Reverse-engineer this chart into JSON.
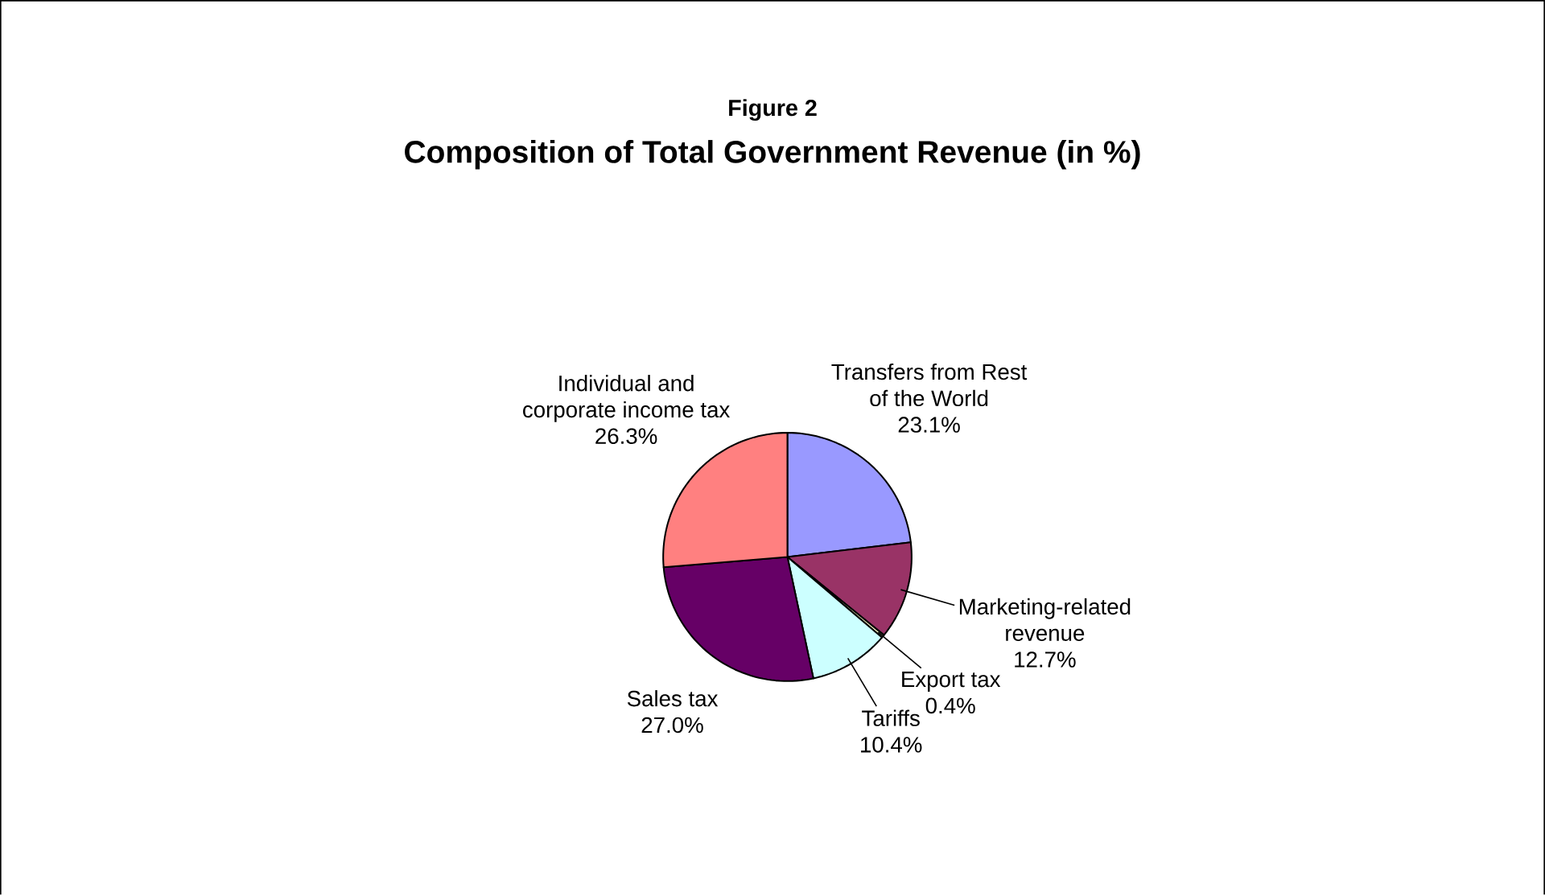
{
  "chart_data": {
    "type": "pie",
    "title": "Figure 2",
    "subtitle": "Composition of Total Government Revenue (in %)",
    "categories": [
      "Transfers from Rest of the World",
      "Marketing-related revenue",
      "Export tax",
      "Tariffs",
      "Sales tax",
      "Individual and corporate income tax"
    ],
    "values": [
      23.1,
      12.7,
      0.4,
      10.4,
      27.0,
      26.3
    ],
    "value_labels": [
      "23.1%",
      "12.7%",
      "0.4%",
      "10.4%",
      "27.0%",
      "26.3%"
    ],
    "colors": [
      "#9999ff",
      "#993366",
      "#ffffcc",
      "#ccffff",
      "#660066",
      "#ff8080"
    ]
  }
}
